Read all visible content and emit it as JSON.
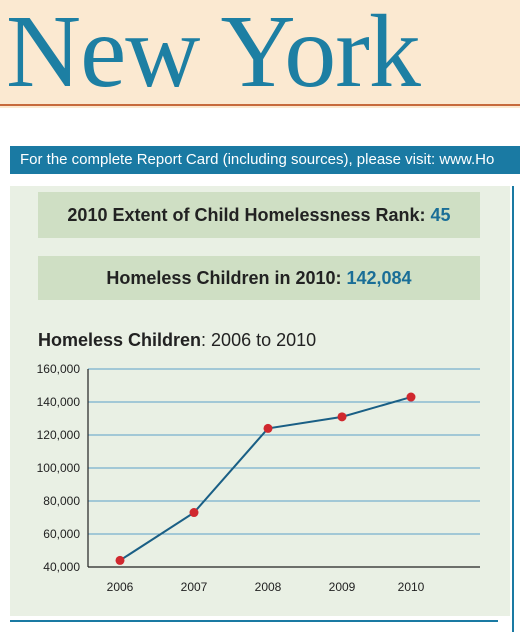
{
  "header": {
    "state_name": "New York"
  },
  "banner": {
    "text": "For the complete Report Card (including sources), please visit: www.Ho"
  },
  "stats": {
    "rank_label": "2010 Extent of Child Homelessness Rank: ",
    "rank_value": "45",
    "count_label": "Homeless Children in 2010: ",
    "count_value": "142,084"
  },
  "colors": {
    "accent": "#1a7aa3",
    "panel": "#e9f0e4",
    "stat_box": "#cfdfc4",
    "line": "#1a5f85",
    "marker": "#d0282e",
    "gridline": "#5aa0c8"
  },
  "chart_data": {
    "type": "line",
    "title_bold": "Homeless Children",
    "title_rest": ": 2006 to 2010",
    "categories": [
      "2006",
      "2007",
      "2008",
      "2009",
      "2010"
    ],
    "values": [
      44000,
      73000,
      124000,
      131000,
      143000
    ],
    "ylim": [
      40000,
      160000
    ],
    "yticks": [
      40000,
      60000,
      80000,
      100000,
      120000,
      140000,
      160000
    ],
    "ytick_labels": [
      "40,000",
      "60,000",
      "80,000",
      "100,000",
      "120,000",
      "140,000",
      "160,000"
    ],
    "grid": true
  }
}
